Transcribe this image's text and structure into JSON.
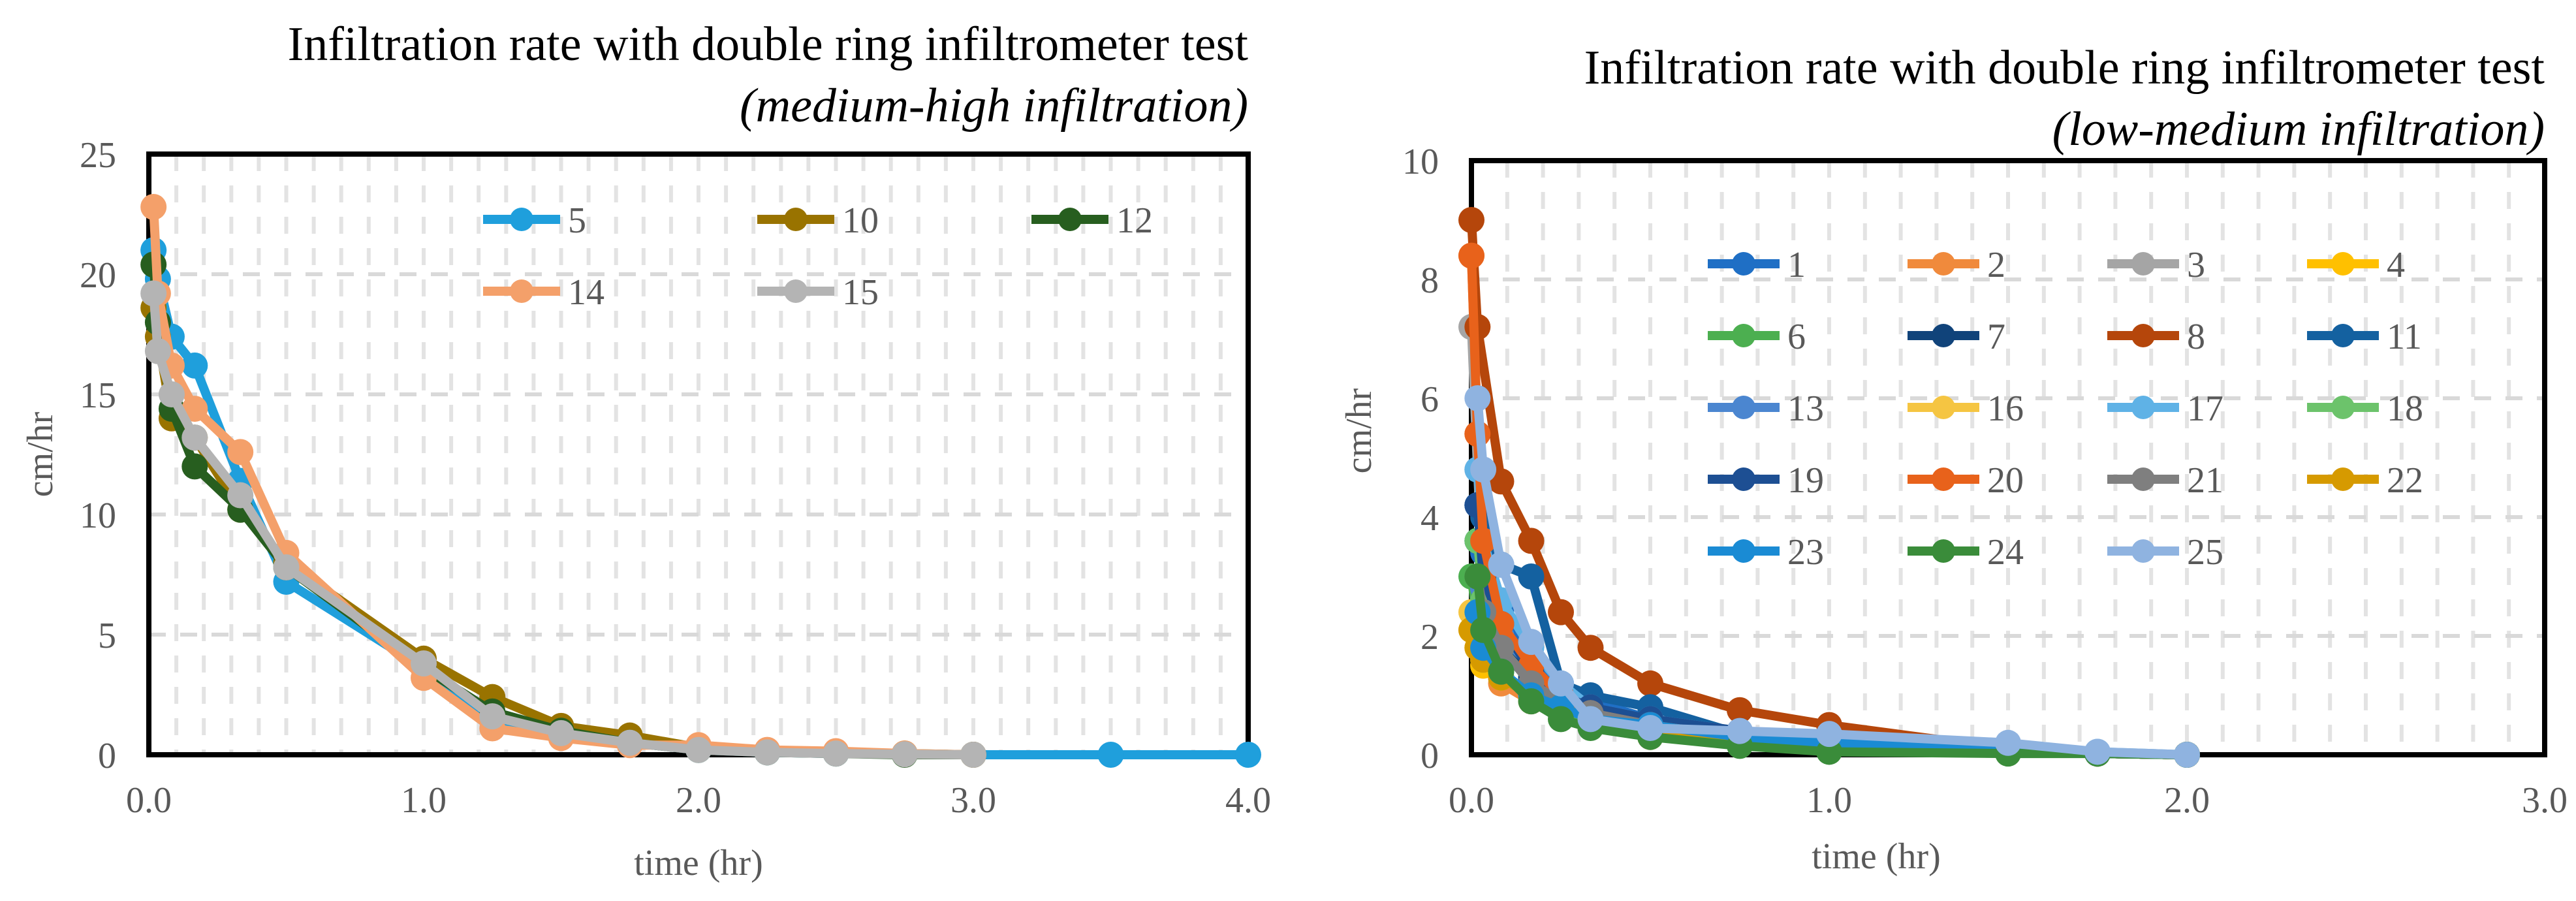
{
  "chart_data": [
    {
      "type": "line",
      "title": "Infiltration rate with double ring infiltrometer test",
      "subtitle": "(medium-high infiltration)",
      "xlabel": "time (hr)",
      "ylabel": "cm/hr",
      "xlim": [
        0,
        4
      ],
      "ylim": [
        0,
        25
      ],
      "xticks": [
        "0.0",
        "1.0",
        "2.0",
        "3.0",
        "4.0"
      ],
      "yticks": [
        "0",
        "5",
        "10",
        "15",
        "20",
        "25"
      ],
      "xtick_values": [
        0,
        1,
        2,
        3,
        4
      ],
      "ytick_values": [
        0,
        5,
        10,
        15,
        20,
        25
      ],
      "grid": true,
      "legend_position": "top",
      "series": [
        {
          "name": "5",
          "color": "#1f9fdc",
          "x": [
            0.017,
            0.033,
            0.083,
            0.167,
            0.333,
            0.5,
            1.0,
            1.25,
            1.5,
            1.75,
            2.0,
            2.25,
            2.5,
            2.75,
            3.0,
            3.5,
            4.0
          ],
          "y": [
            21.0,
            19.8,
            17.4,
            16.2,
            11.4,
            7.2,
            3.6,
            1.5,
            0.9,
            0.5,
            0.2,
            0.1,
            0.05,
            0.02,
            0.0,
            0.0,
            0.0
          ]
        },
        {
          "name": "10",
          "color": "#997300",
          "x": [
            0.017,
            0.033,
            0.083,
            0.167,
            0.333,
            0.5,
            1.0,
            1.25,
            1.5,
            1.75,
            2.0,
            2.25,
            2.5,
            2.75,
            3.0
          ],
          "y": [
            18.6,
            17.4,
            14.0,
            13.2,
            10.2,
            8.0,
            4.0,
            2.4,
            1.2,
            0.8,
            0.3,
            0.15,
            0.1,
            0.05,
            0.0
          ]
        },
        {
          "name": "12",
          "color": "#275e1f",
          "x": [
            0.017,
            0.033,
            0.083,
            0.167,
            0.333,
            0.5,
            1.0,
            1.25,
            1.5,
            1.75,
            2.0,
            2.25,
            2.5,
            2.75,
            3.0
          ],
          "y": [
            20.4,
            18.0,
            14.4,
            12.0,
            10.2,
            7.8,
            3.6,
            1.8,
            1.0,
            0.5,
            0.2,
            0.1,
            0.05,
            0.0,
            0.0
          ]
        },
        {
          "name": "14",
          "color": "#f4a06a",
          "x": [
            0.017,
            0.033,
            0.083,
            0.167,
            0.333,
            0.5,
            1.0,
            1.25,
            1.5,
            1.75,
            2.0,
            2.25,
            2.5,
            2.75,
            3.0
          ],
          "y": [
            22.8,
            19.2,
            16.2,
            14.4,
            12.6,
            8.4,
            3.2,
            1.1,
            0.7,
            0.4,
            0.4,
            0.2,
            0.15,
            0.05,
            0.0
          ]
        },
        {
          "name": "15",
          "color": "#b4b4b4",
          "x": [
            0.017,
            0.033,
            0.083,
            0.167,
            0.333,
            0.5,
            1.0,
            1.25,
            1.5,
            1.75,
            2.0,
            2.25,
            2.5,
            2.75,
            3.0
          ],
          "y": [
            19.2,
            16.8,
            15.0,
            13.2,
            10.8,
            7.8,
            3.8,
            1.6,
            0.9,
            0.5,
            0.2,
            0.1,
            0.05,
            0.02,
            0.0
          ]
        }
      ]
    },
    {
      "type": "line",
      "title": "Infiltration rate with double ring infiltrometer test",
      "subtitle": "(low-medium infiltration)",
      "xlabel": "time (hr)",
      "ylabel": "cm/hr",
      "xlim": [
        0,
        3
      ],
      "ylim": [
        0,
        10
      ],
      "xticks": [
        "0.0",
        "1.0",
        "2.0",
        "3.0"
      ],
      "yticks": [
        "0",
        "2",
        "4",
        "6",
        "8",
        "10"
      ],
      "xtick_values": [
        0,
        1,
        2,
        3
      ],
      "ytick_values": [
        0,
        2,
        4,
        6,
        8,
        10
      ],
      "grid": true,
      "legend_position": "top-right",
      "series": [
        {
          "name": "1",
          "color": "#1f6fc5",
          "x": [
            0.017,
            0.033,
            0.083,
            0.167,
            0.25,
            0.333,
            0.5,
            0.75,
            1.0,
            1.5,
            1.75,
            2.0
          ],
          "y": [
            4.2,
            3.4,
            2.4,
            1.6,
            1.1,
            0.9,
            0.6,
            0.3,
            0.2,
            0.05,
            0.02,
            0.0
          ]
        },
        {
          "name": "2",
          "color": "#f08a3c",
          "x": [
            0.0,
            0.017,
            0.033,
            0.083,
            0.167,
            0.25,
            0.333,
            0.5,
            0.75,
            1.0,
            1.5,
            1.75,
            2.0
          ],
          "y": [
            8.4,
            5.4,
            1.5,
            1.2,
            0.9,
            0.7,
            0.5,
            0.3,
            0.2,
            0.1,
            0.05,
            0.02,
            0.0
          ]
        },
        {
          "name": "3",
          "color": "#a5a5a5",
          "x": [
            0.0,
            0.017,
            0.033,
            0.083,
            0.167,
            0.25,
            0.333,
            0.5,
            0.75,
            1.0,
            1.5,
            1.75,
            2.0
          ],
          "y": [
            7.2,
            4.8,
            3.0,
            2.0,
            1.4,
            1.0,
            0.7,
            0.5,
            0.3,
            0.2,
            0.1,
            0.02,
            0.0
          ]
        },
        {
          "name": "4",
          "color": "#ffc000",
          "x": [
            0.0,
            0.017,
            0.033,
            0.083,
            0.167,
            0.25,
            0.333,
            0.5,
            0.75,
            1.0,
            1.5,
            1.75,
            2.0
          ],
          "y": [
            2.1,
            1.8,
            1.5,
            1.3,
            1.0,
            0.8,
            0.6,
            0.4,
            0.25,
            0.15,
            0.05,
            0.02,
            0.0
          ]
        },
        {
          "name": "6",
          "color": "#4caf50",
          "x": [
            0.0,
            0.017,
            0.033,
            0.083,
            0.167,
            0.25,
            0.333,
            0.5,
            0.75,
            1.0,
            1.5,
            1.75,
            2.0
          ],
          "y": [
            3.0,
            2.2,
            1.6,
            1.3,
            1.0,
            0.7,
            0.5,
            0.35,
            0.2,
            0.1,
            0.05,
            0.02,
            0.0
          ]
        },
        {
          "name": "7",
          "color": "#10437a",
          "x": [
            0.017,
            0.033,
            0.083,
            0.167,
            0.25,
            0.333,
            0.5,
            0.75,
            1.0,
            1.5,
            1.75,
            2.0
          ],
          "y": [
            3.6,
            2.6,
            1.8,
            1.3,
            0.9,
            0.7,
            0.45,
            0.3,
            0.2,
            0.05,
            0.02,
            0.0
          ]
        },
        {
          "name": "8",
          "color": "#b5460b",
          "x": [
            0.0,
            0.017,
            0.083,
            0.167,
            0.25,
            0.333,
            0.5,
            0.75,
            1.0,
            1.5,
            1.75,
            2.0
          ],
          "y": [
            9.0,
            7.2,
            4.6,
            3.6,
            2.4,
            1.8,
            1.2,
            0.75,
            0.5,
            0.1,
            0.02,
            0.0
          ]
        },
        {
          "name": "11",
          "color": "#1461a0",
          "x": [
            0.017,
            0.033,
            0.083,
            0.167,
            0.25,
            0.333,
            0.5,
            0.75,
            1.0,
            1.5,
            1.75,
            2.0
          ],
          "y": [
            4.2,
            4.0,
            3.2,
            3.0,
            1.2,
            1.0,
            0.8,
            0.35,
            0.2,
            0.05,
            0.02,
            0.0
          ]
        },
        {
          "name": "13",
          "color": "#4b86d0",
          "x": [
            0.017,
            0.033,
            0.083,
            0.167,
            0.25,
            0.333,
            0.5,
            0.75,
            1.0,
            1.5,
            1.75,
            2.0
          ],
          "y": [
            3.6,
            2.8,
            2.0,
            1.5,
            1.0,
            0.75,
            0.5,
            0.35,
            0.2,
            0.1,
            0.02,
            0.0
          ]
        },
        {
          "name": "16",
          "color": "#f5c542",
          "x": [
            0.0,
            0.017,
            0.033,
            0.083,
            0.167,
            0.25,
            0.333,
            0.5,
            0.75,
            1.0,
            1.5,
            1.75,
            2.0
          ],
          "y": [
            2.4,
            2.0,
            1.6,
            1.3,
            1.1,
            0.8,
            0.6,
            0.4,
            0.25,
            0.15,
            0.05,
            0.02,
            0.0
          ]
        },
        {
          "name": "17",
          "color": "#5fb2e6",
          "x": [
            0.017,
            0.033,
            0.083,
            0.167,
            0.25,
            0.333,
            0.5,
            0.75,
            1.0,
            1.5,
            1.75,
            2.0
          ],
          "y": [
            4.8,
            3.6,
            2.6,
            1.8,
            1.2,
            0.8,
            0.6,
            0.4,
            0.3,
            0.15,
            0.05,
            0.0
          ]
        },
        {
          "name": "18",
          "color": "#6cc36b",
          "x": [
            0.017,
            0.033,
            0.083,
            0.167,
            0.25,
            0.333,
            0.5,
            0.75,
            1.0,
            1.5,
            1.75,
            2.0
          ],
          "y": [
            3.6,
            2.6,
            1.8,
            1.2,
            0.8,
            0.6,
            0.4,
            0.3,
            0.2,
            0.1,
            0.02,
            0.0
          ]
        },
        {
          "name": "19",
          "color": "#1d4f93",
          "x": [
            0.017,
            0.033,
            0.083,
            0.167,
            0.25,
            0.333,
            0.5,
            0.75,
            1.0,
            1.5,
            1.75,
            2.0
          ],
          "y": [
            4.2,
            3.0,
            2.2,
            1.4,
            1.0,
            0.8,
            0.6,
            0.4,
            0.2,
            0.05,
            0.02,
            0.0
          ]
        },
        {
          "name": "20",
          "color": "#e8621b",
          "x": [
            0.0,
            0.017,
            0.033,
            0.083,
            0.167,
            0.25,
            0.333,
            0.5,
            0.75,
            1.0,
            1.5,
            1.75,
            2.0
          ],
          "y": [
            8.4,
            5.4,
            3.6,
            2.2,
            1.5,
            1.0,
            0.7,
            0.5,
            0.3,
            0.2,
            0.1,
            0.02,
            0.0
          ]
        },
        {
          "name": "21",
          "color": "#7f7f7f",
          "x": [
            0.017,
            0.033,
            0.083,
            0.167,
            0.25,
            0.333,
            0.5,
            0.75,
            1.0,
            1.5,
            1.75,
            2.0
          ],
          "y": [
            3.0,
            2.4,
            1.8,
            1.2,
            0.9,
            0.7,
            0.5,
            0.3,
            0.2,
            0.1,
            0.02,
            0.0
          ]
        },
        {
          "name": "22",
          "color": "#d69a00",
          "x": [
            0.0,
            0.017,
            0.033,
            0.083,
            0.167,
            0.25,
            0.333,
            0.5,
            0.75,
            1.0,
            1.5,
            1.75,
            2.0
          ],
          "y": [
            2.1,
            1.8,
            1.6,
            1.3,
            1.0,
            0.8,
            0.6,
            0.4,
            0.25,
            0.15,
            0.05,
            0.02,
            0.0
          ]
        },
        {
          "name": "23",
          "color": "#1a8bd4",
          "x": [
            0.017,
            0.033,
            0.083,
            0.167,
            0.25,
            0.333,
            0.5,
            0.75,
            1.0,
            1.5,
            1.75,
            2.0
          ],
          "y": [
            2.4,
            1.8,
            1.4,
            1.0,
            0.8,
            0.6,
            0.5,
            0.3,
            0.2,
            0.1,
            0.02,
            0.0
          ]
        },
        {
          "name": "24",
          "color": "#3a8c3a",
          "x": [
            0.017,
            0.033,
            0.083,
            0.167,
            0.25,
            0.333,
            0.5,
            0.75,
            1.0,
            1.5,
            1.75,
            2.0
          ],
          "y": [
            3.0,
            2.1,
            1.4,
            0.9,
            0.6,
            0.45,
            0.3,
            0.15,
            0.05,
            0.02,
            0.02,
            0.0
          ]
        },
        {
          "name": "25",
          "color": "#8fb3e0",
          "x": [
            0.017,
            0.033,
            0.083,
            0.167,
            0.25,
            0.333,
            0.5,
            0.75,
            1.0,
            1.5,
            1.75,
            2.0
          ],
          "y": [
            6.0,
            4.8,
            3.2,
            1.9,
            1.2,
            0.6,
            0.45,
            0.4,
            0.35,
            0.2,
            0.05,
            0.0
          ]
        }
      ]
    }
  ]
}
